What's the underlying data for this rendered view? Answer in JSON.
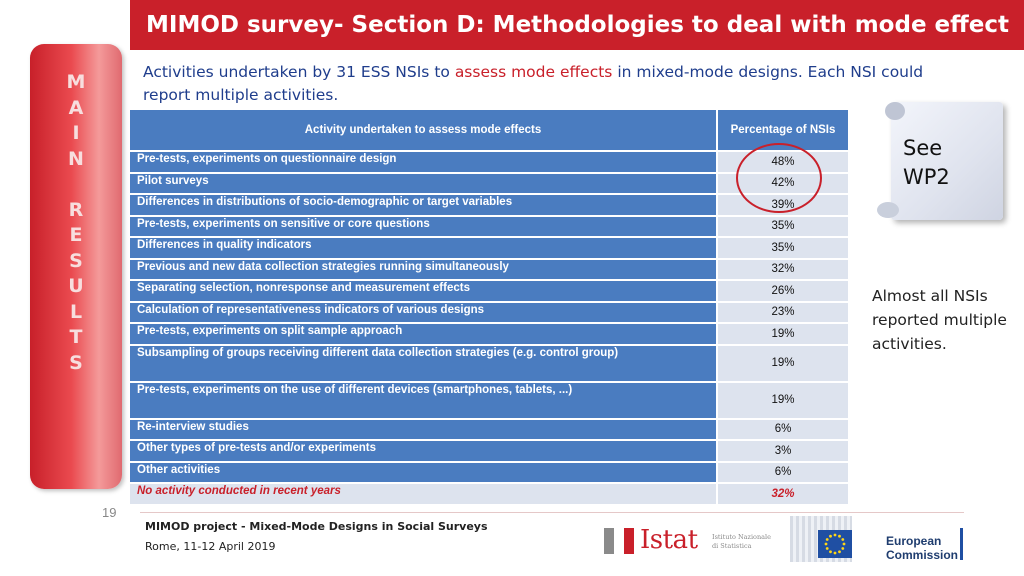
{
  "header": {
    "title": "MIMOD survey- Section D: Methodologies to deal with mode effect"
  },
  "side_banner": {
    "letters": [
      "M",
      "A",
      "I",
      "N",
      "",
      "R",
      "E",
      "S",
      "U",
      "L",
      "T",
      "S"
    ]
  },
  "page_number": "19",
  "subtitle": {
    "part1": "Activities undertaken by 31 ESS NSIs to ",
    "highlight": "assess mode effects",
    "part2": " in mixed-mode designs. Each NSI could report multiple activities."
  },
  "table": {
    "headers": [
      "Activity undertaken to assess mode effects",
      "Percentage of NSIs"
    ],
    "rows": [
      {
        "activity": "Pre-tests, experiments on questionnaire design",
        "percent": "48%"
      },
      {
        "activity": "Pilot surveys",
        "percent": "42%"
      },
      {
        "activity": "Differences in distributions of socio-demographic or target variables",
        "percent": "39%"
      },
      {
        "activity": "Pre-tests, experiments on sensitive or core questions",
        "percent": "35%"
      },
      {
        "activity": "Differences in quality indicators",
        "percent": "35%"
      },
      {
        "activity": "Previous and new data collection strategies running simultaneously",
        "percent": "32%"
      },
      {
        "activity": "Separating selection, nonresponse and measurement effects",
        "percent": "26%"
      },
      {
        "activity": "Calculation of representativeness indicators of various designs",
        "percent": "23%"
      },
      {
        "activity": "Pre-tests, experiments on split sample approach",
        "percent": "19%"
      },
      {
        "activity": "Subsampling of groups receiving different data collection strategies (e.g. control group)",
        "percent": "19%"
      },
      {
        "activity": "Pre-tests, experiments on the use of different devices (smartphones, tablets, ...)",
        "percent": "19%"
      },
      {
        "activity": "Re-interview studies",
        "percent": "6%"
      },
      {
        "activity": "Other types of pre-tests and/or experiments",
        "percent": "3%"
      },
      {
        "activity": "Other activities",
        "percent": "6%"
      },
      {
        "activity": "No activity conducted in recent years",
        "percent": "32%"
      }
    ]
  },
  "callout": {
    "label_line1": "See",
    "label_line2": "WP2"
  },
  "side_note": "Almost all NSIs reported multiple activities.",
  "footer": {
    "project": "MIMOD project - Mixed-Mode Designs in Social Surveys",
    "date": "Rome, 11-12 April 2019"
  },
  "logos": {
    "istat_name": "Istat",
    "istat_sub_line1": "Istituto Nazionale",
    "istat_sub_line2": "di Statistica",
    "ec_line1": "European",
    "ec_line2": "Commission"
  },
  "colors": {
    "accent_red": "#c9202a",
    "table_blue": "#4a7cc0",
    "cell_grey": "#dde3ee",
    "subtitle_blue": "#1f3d8c"
  }
}
